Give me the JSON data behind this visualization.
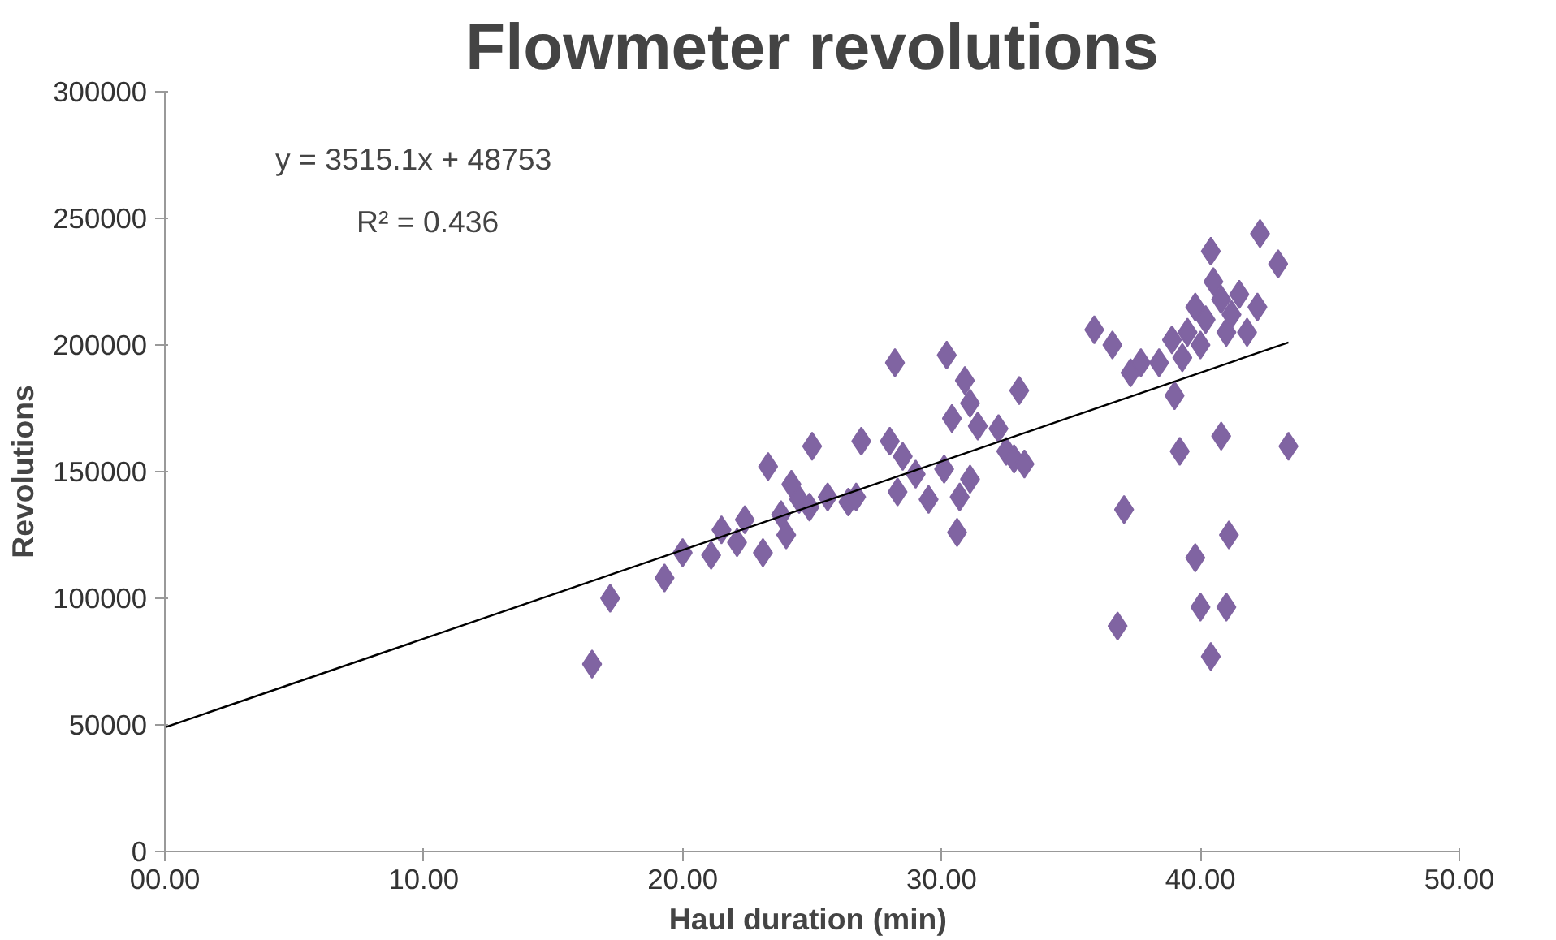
{
  "chart_data": {
    "type": "scatter",
    "title": "Flowmeter revolutions",
    "xlabel": "Haul duration  (min)",
    "ylabel": "Revolutions",
    "xlim": [
      0,
      50
    ],
    "xticks": [
      {
        "value": 0,
        "label": "00.00"
      },
      {
        "value": 10,
        "label": "10.00"
      },
      {
        "value": 20,
        "label": "20.00"
      },
      {
        "value": 30,
        "label": "30.00"
      },
      {
        "value": 40,
        "label": "40.00"
      },
      {
        "value": 50,
        "label": "50.00"
      }
    ],
    "ylim": [
      0,
      300000
    ],
    "yticks": [
      0,
      50000,
      100000,
      150000,
      200000,
      250000,
      300000
    ],
    "grid": false,
    "marker": "diamond",
    "annotations": [
      "y = 3515.1x + 48753",
      "R² = 0.436"
    ],
    "series": [
      {
        "color": "#8064a2",
        "x": [
          16.5,
          17.2,
          19.3,
          20.0,
          21.1,
          21.5,
          22.1,
          22.4,
          23.1,
          23.3,
          23.8,
          24.0,
          24.2,
          24.5,
          24.9,
          25.0,
          25.6,
          26.4,
          26.7,
          26.9,
          28.2,
          28.0,
          28.3,
          28.5,
          29.0,
          29.5,
          30.1,
          30.2,
          30.4,
          30.6,
          30.9,
          30.7,
          31.1,
          31.1,
          31.4,
          32.2,
          32.5,
          32.8,
          33.0,
          33.2,
          35.9,
          36.6,
          36.8,
          37.05,
          37.3,
          37.7,
          38.4,
          38.9,
          39.0,
          39.2,
          40.8,
          43.4,
          41.1,
          39.8,
          40.0,
          41.0,
          40.4,
          42.3,
          43.0,
          40.4,
          39.5,
          39.8,
          40.2,
          40.5,
          40.8,
          41.2,
          41.5,
          41.8,
          42.2,
          39.3,
          40.0,
          41.0
        ],
        "values": [
          74000,
          100000,
          108000,
          118000,
          117000,
          127000,
          122000,
          131000,
          118000,
          152000,
          133000,
          125000,
          145000,
          139000,
          136000,
          160000,
          140000,
          138000,
          140000,
          162000,
          193000,
          162000,
          142000,
          156000,
          149000,
          139000,
          151000,
          196000,
          171000,
          126000,
          186000,
          140000,
          177000,
          147000,
          168000,
          167000,
          158000,
          155000,
          182000,
          153000,
          206000,
          200000,
          89000,
          135000,
          189000,
          193000,
          193000,
          202000,
          180000,
          158000,
          164000,
          160000,
          125000,
          116000,
          96500,
          96500,
          77000,
          244000,
          232000,
          237000,
          205000,
          215000,
          210000,
          225000,
          218000,
          212000,
          220000,
          205000,
          215000,
          195000,
          200000,
          205000
        ]
      },
      {
        "type": "line",
        "color": "#000000",
        "marker": "none",
        "x": [
          0,
          43.4
        ],
        "values": [
          49000,
          201000
        ]
      }
    ]
  }
}
